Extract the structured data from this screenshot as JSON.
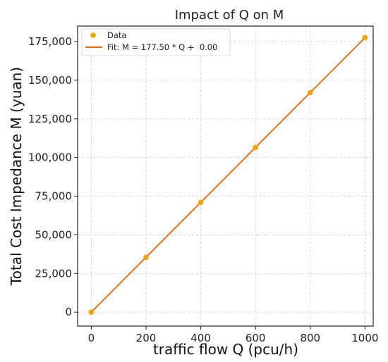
{
  "chart_data": {
    "type": "scatter",
    "title": "Impact of Q on M",
    "xlabel": "traffic flow Q (pcu/h)",
    "ylabel": "Total Cost Impedance M (yuan)",
    "xlim": [
      -50,
      1030
    ],
    "ylim": [
      -9000,
      185000
    ],
    "x_ticks": [
      0,
      200,
      400,
      600,
      800,
      1000
    ],
    "x_tick_labels": [
      "0",
      "200",
      "400",
      "600",
      "800",
      "1000"
    ],
    "y_ticks": [
      0,
      25000,
      50000,
      75000,
      100000,
      125000,
      150000,
      175000
    ],
    "y_tick_labels": [
      "0",
      "25,000",
      "50,000",
      "75,000",
      "100,000",
      "125,000",
      "150,000",
      "175,000"
    ],
    "grid": true,
    "legend_position": "top-left",
    "series": [
      {
        "name": "Data",
        "kind": "scatter",
        "color": "#f5a300",
        "x": [
          0,
          200,
          400,
          600,
          800,
          1000
        ],
        "y": [
          0,
          35500,
          71000,
          106500,
          142000,
          177500
        ]
      },
      {
        "name": "Fit: M = 177.50 * Q +  0.00",
        "kind": "line",
        "color": "#e8650a",
        "x": [
          0,
          1000
        ],
        "y": [
          0,
          177500
        ]
      }
    ]
  }
}
